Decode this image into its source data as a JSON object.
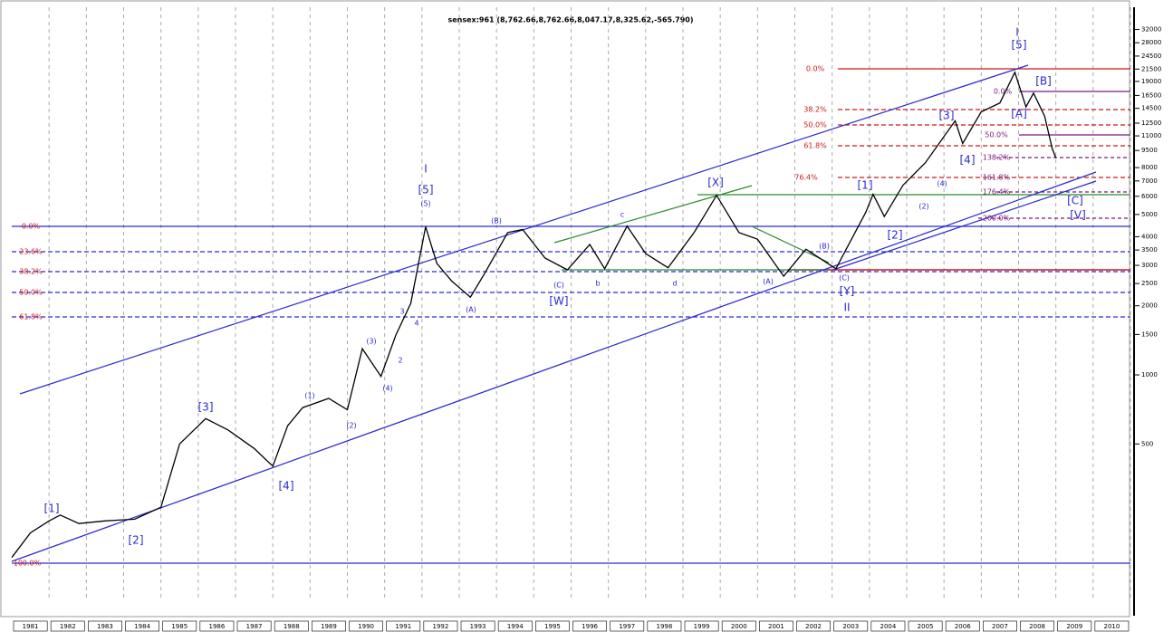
{
  "chart_data": {
    "type": "line",
    "title": "sensex:961 (8,762.66,8,762.66,8,047.17,8,325.62,-565.790)",
    "x": [
      1981.0,
      1981.5,
      1982.0,
      1982.3,
      1982.8,
      1983.5,
      1984.3,
      1985.0,
      1985.5,
      1986.2,
      1986.8,
      1987.5,
      1988.0,
      1988.4,
      1988.8,
      1989.5,
      1990.0,
      1990.4,
      1990.9,
      1991.3,
      1991.7,
      1992.1,
      1992.4,
      1992.8,
      1993.3,
      1993.7,
      1994.3,
      1994.7,
      1995.3,
      1995.9,
      1996.5,
      1996.9,
      1997.5,
      1998.0,
      1998.6,
      1999.3,
      1999.9,
      2000.5,
      2001.0,
      2001.7,
      2002.3,
      2003.1,
      2003.9,
      2004.1,
      2004.4,
      2004.9,
      2005.5,
      2006.3,
      2006.5,
      2007.0,
      2007.5,
      2007.9,
      2008.2,
      2008.4,
      2008.7,
      2008.9,
      2009.0
    ],
    "series": [
      {
        "name": "sensex",
        "color": "#000000",
        "values": [
          160,
          205,
          231,
          245,
          225,
          231,
          235,
          265,
          500,
          645,
          575,
          478,
          400,
          600,
          720,
          790,
          705,
          1300,
          985,
          1490,
          2050,
          4420,
          3060,
          2560,
          2180,
          2800,
          4170,
          4300,
          3230,
          2870,
          3700,
          2900,
          4450,
          3380,
          2930,
          4170,
          6060,
          4170,
          3900,
          2690,
          3530,
          2900,
          5100,
          6120,
          4900,
          6700,
          8400,
          12800,
          10200,
          14000,
          15300,
          20800,
          14700,
          16900,
          13400,
          9700,
          8800
        ]
      }
    ],
    "xlim": [
      1981,
      2011
    ],
    "xticks": [
      1981,
      1982,
      1983,
      1984,
      1985,
      1986,
      1987,
      1988,
      1989,
      1990,
      1991,
      1992,
      1993,
      1994,
      1995,
      1996,
      1997,
      1998,
      1999,
      2000,
      2001,
      2002,
      2003,
      2004,
      2005,
      2006,
      2007,
      2008,
      2009,
      2010
    ],
    "ylim": [
      112,
      43000
    ],
    "log_scale": true,
    "grid": true,
    "yticks": [
      32000,
      28000,
      24500,
      21500,
      19000,
      16500,
      14500,
      12500,
      11000,
      9500,
      8000,
      7000,
      6000,
      5000,
      4000,
      3500,
      3000,
      2500,
      2000,
      1500,
      1000,
      500
    ],
    "annotations": [
      "[1]",
      "[2]",
      "[3]",
      "[4]",
      "(1)",
      "(2)",
      "(3)",
      "(4)",
      "2",
      "3",
      "4",
      "I",
      "[5]",
      "(5)",
      "(B)",
      "(A)",
      "(C)",
      "[W]",
      "b",
      "c",
      "d",
      "[X]",
      "(A)",
      "(B)",
      "(C)",
      "[Y]",
      "II",
      "[1]",
      "[2]",
      "[3]",
      "[4]",
      "(2)",
      "(4)",
      "I",
      "[5]",
      "[B]",
      "[A]",
      "[C]",
      "[V]",
      "0.0%",
      "23.6%",
      "38.2%",
      "50.0%",
      "61.8%",
      "100.0%",
      "0.0%",
      "38.2%",
      "50.0%",
      "61.8%",
      "76.4%",
      "0.0%",
      "50.0%",
      "138.2%",
      "161.8%",
      "176.4%",
      "200.0%"
    ]
  }
}
